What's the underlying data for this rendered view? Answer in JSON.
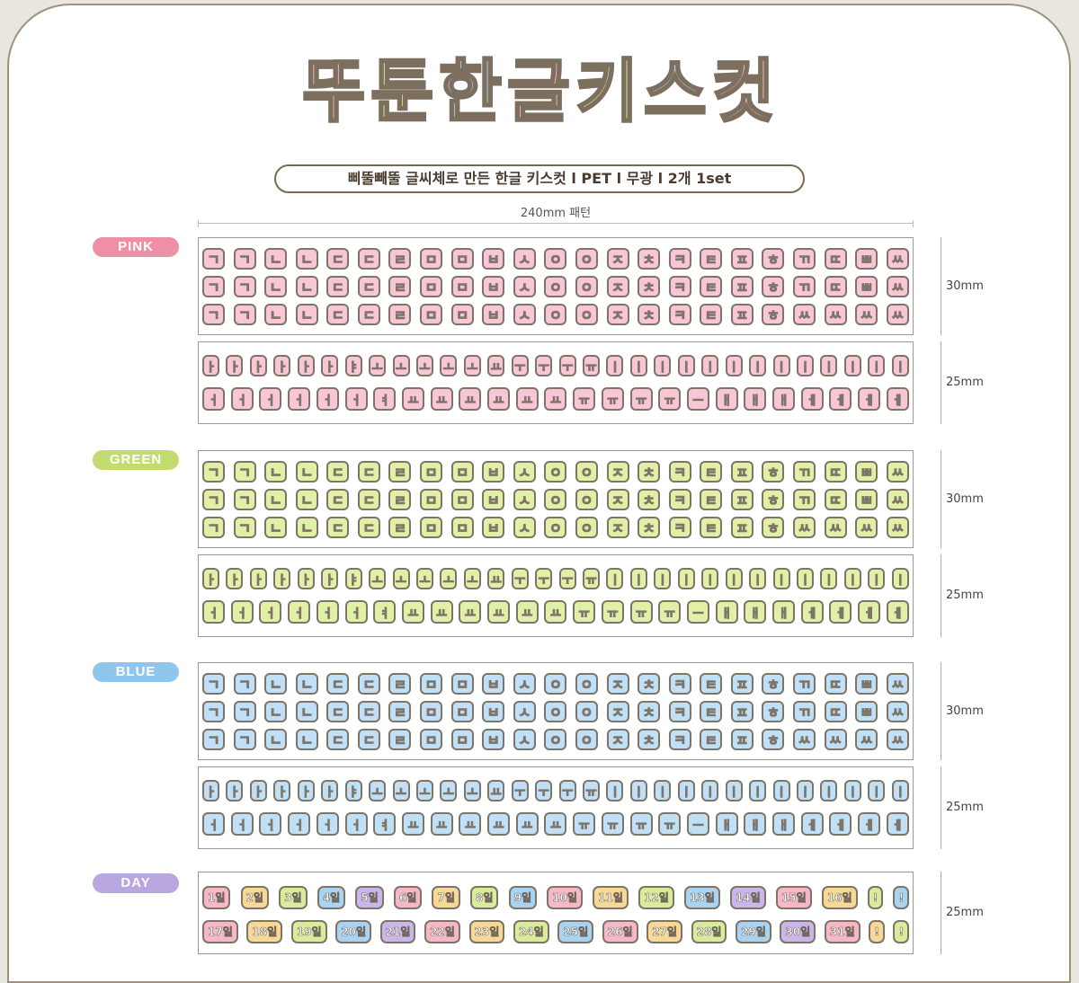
{
  "title": {
    "chars": [
      "뚜",
      "툰",
      "한",
      "글",
      "키",
      "스",
      "컷"
    ],
    "colors": [
      "#f6b7c8",
      "#d9ec9a",
      "#a9d3f2",
      "#f6b7c8",
      "#d9ec9a",
      "#a9d3f2",
      "#f6b7c8"
    ]
  },
  "subtitle": "삐뚤빼뚤 글씨체로 만든 한글 키스컷 l PET l 무광 l 2개 1set",
  "dimension_label": "240mm 패턴",
  "size_30": "30mm",
  "size_25": "25mm",
  "sections": [
    {
      "name": "PINK",
      "tag_color": "#ef8fa6",
      "fill": "#f8c6d4"
    },
    {
      "name": "GREEN",
      "tag_color": "#c3dc6f",
      "fill": "#e1f0a6"
    },
    {
      "name": "BLUE",
      "tag_color": "#8fc6ee",
      "fill": "#bfe0f7"
    }
  ],
  "day": {
    "name": "DAY",
    "tag_color": "#b9a7df",
    "row1": [
      "1일",
      "2일",
      "3일",
      "4일",
      "5일",
      "6일",
      "7일",
      "8일",
      "9일",
      "10일",
      "11일",
      "12일",
      "13일",
      "14일",
      "15일",
      "16일",
      "!",
      "!"
    ],
    "row2": [
      "17일",
      "18일",
      "19일",
      "20일",
      "21일",
      "22일",
      "23일",
      "24일",
      "25일",
      "26일",
      "27일",
      "28일",
      "29일",
      "30일",
      "31일",
      "!",
      "!"
    ],
    "colors": [
      "#f6b7c8",
      "#f7d894",
      "#d9ec9a",
      "#a9d3f2",
      "#c9b7ec",
      "#f6b7c8",
      "#f7d894",
      "#d9ec9a",
      "#a9d3f2"
    ]
  },
  "glyphs": {
    "row_a": [
      "ㄱ",
      "ㄱ",
      "ㄴ",
      "ㄴ",
      "ㄷ",
      "ㄷ",
      "ㄹ",
      "ㅁ",
      "ㅁ",
      "ㅂ",
      "ㅅ",
      "ㅇ",
      "ㅇ",
      "ㅈ",
      "ㅊ",
      "ㅋ",
      "ㅌ",
      "ㅍ",
      "ㅎ",
      "ㄲ",
      "ㄸ",
      "ㅃ",
      "ㅆ"
    ],
    "row_c": [
      "ㄱ",
      "ㄱ",
      "ㄴ",
      "ㄴ",
      "ㄷ",
      "ㄷ",
      "ㄹ",
      "ㅁ",
      "ㅁ",
      "ㅂ",
      "ㅅ",
      "ㅇ",
      "ㅇ",
      "ㅈ",
      "ㅊ",
      "ㅋ",
      "ㅌ",
      "ㅍ",
      "ㅎ",
      "ㅆ",
      "ㅆ",
      "ㅆ",
      "ㅆ"
    ],
    "row_d": [
      "ㅏ",
      "ㅏ",
      "ㅏ",
      "ㅏ",
      "ㅏ",
      "ㅏ",
      "ㅑ",
      "ㅗ",
      "ㅗ",
      "ㅗ",
      "ㅗ",
      "ㅗ",
      "ㅛ",
      "ㅜ",
      "ㅜ",
      "ㅜ",
      "ㅠ",
      "ㅣ",
      "ㅣ",
      "ㅣ",
      "ㅣ",
      "ㅣ",
      "ㅣ",
      "ㅣ",
      "ㅣ",
      "ㅣ",
      "ㅣ",
      "ㅣ",
      "ㅣ",
      "ㅣ"
    ],
    "row_e": [
      "ㅓ",
      "ㅓ",
      "ㅓ",
      "ㅓ",
      "ㅓ",
      "ㅓ",
      "ㅕ",
      "ㅛ",
      "ㅛ",
      "ㅛ",
      "ㅛ",
      "ㅛ",
      "ㅛ",
      "ㅠ",
      "ㅠ",
      "ㅠ",
      "ㅠ",
      "ㅡ",
      "ㅐ",
      "ㅐ",
      "ㅐ",
      "ㅔ",
      "ㅔ",
      "ㅔ",
      "ㅔ"
    ]
  }
}
